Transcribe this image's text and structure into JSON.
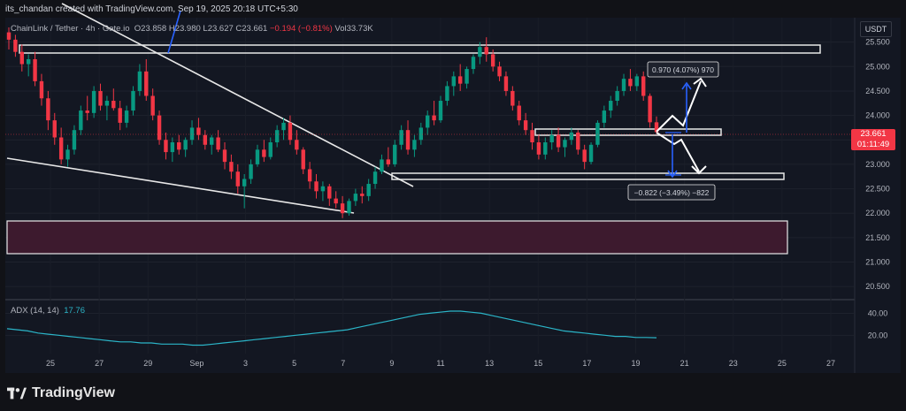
{
  "header": {
    "text": "its_chandan created with TradingView.com, Sep 19, 2025 20:18 UTC+5:30"
  },
  "legend": {
    "symbol": "ChainLink / Tether · 4h · Gate.io",
    "open": "O23.858",
    "high": "H23.980",
    "low": "L23.627",
    "close": "C23.661",
    "change": "−0.194 (−0.81%)",
    "volume": "Vol33.73K"
  },
  "currency_button": "USDT",
  "price_badge": {
    "price": "23.661",
    "countdown": "01:11:49"
  },
  "adx": {
    "label": "ADX (14, 14)",
    "value": "17.76"
  },
  "brand": "TradingView",
  "colors": {
    "bg": "#131722",
    "up": "#089981",
    "down": "#f23645",
    "adx": "#2bb5c8",
    "zone": "#3d1a2e",
    "arrow_blue": "#2962ff"
  },
  "chart_data": {
    "type": "candlestick",
    "price_axis": {
      "ticks": [
        25.5,
        25.0,
        24.5,
        24.0,
        23.5,
        23.0,
        22.5,
        22.0,
        21.5,
        21.0,
        20.5
      ],
      "range": [
        20.25,
        26.0
      ]
    },
    "adx_axis": {
      "ticks": [
        40.0,
        20.0
      ],
      "range": [
        5,
        50
      ]
    },
    "x_ticks": [
      "25",
      "27",
      "29",
      "Sep",
      "3",
      "5",
      "7",
      "9",
      "11",
      "13",
      "15",
      "17",
      "19",
      "21",
      "23",
      "25",
      "27"
    ],
    "candles": [
      [
        25.7,
        25.8,
        25.35,
        25.55
      ],
      [
        25.55,
        25.65,
        25.2,
        25.3
      ],
      [
        25.3,
        25.45,
        24.9,
        25.05
      ],
      [
        25.05,
        25.25,
        24.8,
        25.15
      ],
      [
        25.15,
        25.3,
        24.6,
        24.7
      ],
      [
        24.7,
        24.85,
        24.2,
        24.35
      ],
      [
        24.35,
        24.5,
        23.7,
        23.9
      ],
      [
        23.9,
        24.05,
        23.4,
        23.55
      ],
      [
        23.55,
        23.75,
        23.0,
        23.1
      ],
      [
        23.1,
        23.4,
        22.95,
        23.3
      ],
      [
        23.3,
        23.8,
        23.2,
        23.7
      ],
      [
        23.7,
        24.2,
        23.6,
        24.1
      ],
      [
        24.1,
        24.4,
        23.9,
        24.05
      ],
      [
        24.05,
        24.6,
        23.95,
        24.5
      ],
      [
        24.5,
        24.65,
        24.1,
        24.2
      ],
      [
        24.2,
        24.4,
        23.9,
        24.3
      ],
      [
        24.3,
        24.55,
        24.1,
        24.15
      ],
      [
        24.15,
        24.3,
        23.7,
        23.85
      ],
      [
        23.85,
        24.2,
        23.75,
        24.1
      ],
      [
        24.1,
        24.6,
        24.0,
        24.5
      ],
      [
        24.5,
        25.05,
        24.4,
        24.9
      ],
      [
        24.9,
        25.15,
        24.3,
        24.4
      ],
      [
        24.4,
        24.55,
        23.9,
        24.0
      ],
      [
        24.0,
        24.1,
        23.4,
        23.5
      ],
      [
        23.5,
        23.65,
        23.1,
        23.25
      ],
      [
        23.25,
        23.55,
        23.05,
        23.45
      ],
      [
        23.45,
        23.6,
        23.2,
        23.3
      ],
      [
        23.3,
        23.55,
        23.15,
        23.5
      ],
      [
        23.5,
        23.9,
        23.4,
        23.75
      ],
      [
        23.75,
        23.95,
        23.5,
        23.6
      ],
      [
        23.6,
        23.7,
        23.3,
        23.4
      ],
      [
        23.4,
        23.6,
        23.2,
        23.55
      ],
      [
        23.55,
        23.7,
        23.25,
        23.3
      ],
      [
        23.3,
        23.45,
        22.9,
        23.05
      ],
      [
        23.05,
        23.2,
        22.7,
        22.85
      ],
      [
        22.85,
        23.0,
        22.4,
        22.55
      ],
      [
        22.55,
        22.8,
        22.1,
        22.7
      ],
      [
        22.7,
        23.1,
        22.6,
        23.0
      ],
      [
        23.0,
        23.4,
        22.95,
        23.3
      ],
      [
        23.3,
        23.5,
        23.05,
        23.15
      ],
      [
        23.15,
        23.55,
        23.1,
        23.45
      ],
      [
        23.45,
        23.8,
        23.35,
        23.7
      ],
      [
        23.7,
        23.95,
        23.5,
        23.85
      ],
      [
        23.85,
        24.0,
        23.4,
        23.5
      ],
      [
        23.5,
        23.7,
        23.2,
        23.3
      ],
      [
        23.3,
        23.35,
        22.8,
        22.9
      ],
      [
        22.9,
        23.05,
        22.5,
        22.65
      ],
      [
        22.65,
        22.8,
        22.3,
        22.45
      ],
      [
        22.45,
        22.65,
        22.25,
        22.55
      ],
      [
        22.55,
        22.6,
        22.15,
        22.3
      ],
      [
        22.3,
        22.45,
        22.1,
        22.2
      ],
      [
        22.2,
        22.35,
        21.9,
        22.0
      ],
      [
        22.0,
        22.3,
        21.95,
        22.25
      ],
      [
        22.25,
        22.5,
        22.15,
        22.4
      ],
      [
        22.4,
        22.55,
        22.2,
        22.35
      ],
      [
        22.35,
        22.7,
        22.25,
        22.6
      ],
      [
        22.6,
        22.95,
        22.5,
        22.85
      ],
      [
        22.85,
        23.2,
        22.8,
        23.1
      ],
      [
        23.1,
        23.35,
        22.95,
        23.0
      ],
      [
        23.0,
        23.5,
        22.95,
        23.4
      ],
      [
        23.4,
        23.8,
        23.3,
        23.7
      ],
      [
        23.7,
        23.9,
        23.2,
        23.3
      ],
      [
        23.3,
        23.6,
        23.15,
        23.5
      ],
      [
        23.5,
        23.85,
        23.4,
        23.75
      ],
      [
        23.75,
        24.1,
        23.6,
        24.0
      ],
      [
        24.0,
        24.3,
        23.8,
        23.9
      ],
      [
        23.9,
        24.4,
        23.85,
        24.3
      ],
      [
        24.3,
        24.7,
        24.2,
        24.6
      ],
      [
        24.6,
        24.9,
        24.4,
        24.8
      ],
      [
        24.8,
        25.05,
        24.5,
        24.65
      ],
      [
        24.65,
        25.0,
        24.55,
        24.95
      ],
      [
        24.95,
        25.25,
        24.85,
        25.2
      ],
      [
        25.2,
        25.5,
        25.05,
        25.4
      ],
      [
        25.4,
        25.6,
        25.1,
        25.25
      ],
      [
        25.25,
        25.35,
        24.9,
        25.0
      ],
      [
        25.0,
        25.1,
        24.7,
        24.8
      ],
      [
        24.8,
        24.9,
        24.4,
        24.5
      ],
      [
        24.5,
        24.6,
        24.1,
        24.2
      ],
      [
        24.2,
        24.3,
        23.8,
        23.9
      ],
      [
        23.9,
        24.05,
        23.6,
        23.7
      ],
      [
        23.7,
        23.85,
        23.3,
        23.45
      ],
      [
        23.45,
        23.6,
        23.1,
        23.2
      ],
      [
        23.2,
        23.55,
        23.1,
        23.45
      ],
      [
        23.45,
        23.7,
        23.3,
        23.6
      ],
      [
        23.6,
        23.75,
        23.25,
        23.35
      ],
      [
        23.35,
        23.55,
        23.15,
        23.5
      ],
      [
        23.5,
        23.75,
        23.4,
        23.65
      ],
      [
        23.65,
        23.7,
        23.2,
        23.3
      ],
      [
        23.3,
        23.4,
        22.9,
        23.05
      ],
      [
        23.05,
        23.45,
        23.0,
        23.4
      ],
      [
        23.4,
        23.9,
        23.35,
        23.85
      ],
      [
        23.85,
        24.2,
        23.75,
        24.1
      ],
      [
        24.1,
        24.4,
        23.95,
        24.3
      ],
      [
        24.3,
        24.6,
        24.2,
        24.5
      ],
      [
        24.5,
        24.85,
        24.4,
        24.75
      ],
      [
        24.75,
        24.95,
        24.5,
        24.6
      ],
      [
        24.6,
        24.85,
        24.5,
        24.8
      ],
      [
        24.8,
        24.9,
        24.3,
        24.4
      ],
      [
        24.4,
        24.45,
        23.75,
        23.86
      ],
      [
        23.86,
        23.98,
        23.63,
        23.66
      ]
    ],
    "adx": [
      26,
      25,
      24,
      22,
      21,
      20,
      19,
      18,
      17,
      16,
      15,
      14,
      14,
      13,
      13,
      12,
      12,
      12,
      11,
      11,
      12,
      13,
      14,
      15,
      16,
      17,
      18,
      19,
      20,
      21,
      22,
      23,
      24,
      25,
      27,
      29,
      31,
      33,
      35,
      37,
      39,
      40,
      41,
      42,
      42,
      41,
      40,
      38,
      36,
      34,
      32,
      30,
      28,
      26,
      24,
      23,
      22,
      21,
      20,
      19,
      19,
      18,
      18,
      17.76
    ]
  }
}
